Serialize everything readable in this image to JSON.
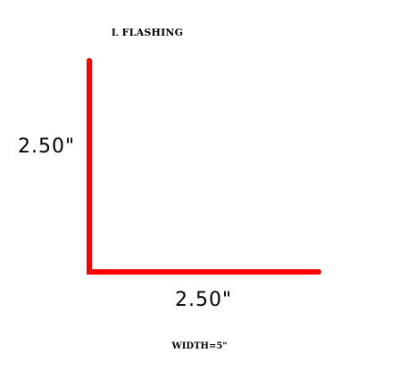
{
  "title": "L  FLASHING",
  "legs": {
    "vertical_label": "2.50\"",
    "horizontal_label": "2.50\""
  },
  "width_label": "WIDTH=5\"",
  "colors": {
    "flashing": "#ff0000",
    "text": "#000000",
    "background": "#ffffff"
  }
}
